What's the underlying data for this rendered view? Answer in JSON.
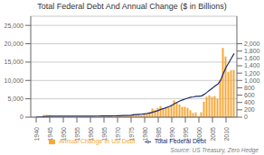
{
  "chart_data": {
    "type": "bar",
    "title": "Total Federal Debt And Annual Change ($ in Billions)",
    "x": [
      1940,
      1941,
      1942,
      1943,
      1944,
      1945,
      1946,
      1947,
      1948,
      1949,
      1950,
      1951,
      1952,
      1953,
      1954,
      1955,
      1956,
      1957,
      1958,
      1959,
      1960,
      1961,
      1962,
      1963,
      1964,
      1965,
      1966,
      1967,
      1968,
      1969,
      1970,
      1971,
      1972,
      1973,
      1974,
      1975,
      1976,
      1977,
      1978,
      1979,
      1980,
      1981,
      1982,
      1983,
      1984,
      1985,
      1986,
      1987,
      1988,
      1989,
      1990,
      1991,
      1992,
      1993,
      1994,
      1995,
      1996,
      1997,
      1998,
      1999,
      2000,
      2001,
      2002,
      2003,
      2004,
      2005,
      2006,
      2007,
      2008,
      2009,
      2010,
      2011,
      2012,
      2013
    ],
    "series": [
      {
        "name": "Annual Change In US Debt",
        "type": "bar",
        "color": "#F4A83A",
        "axis": "y2",
        "values": [
          6,
          6,
          15,
          64,
          65,
          58,
          10,
          0,
          0,
          0,
          5,
          0,
          4,
          7,
          5,
          3,
          0,
          0,
          7,
          8,
          3,
          2,
          11,
          7,
          6,
          7,
          6,
          12,
          28,
          0,
          14,
          27,
          29,
          29,
          18,
          58,
          87,
          77,
          71,
          52,
          80,
          85,
          143,
          234,
          193,
          253,
          303,
          226,
          255,
          267,
          339,
          458,
          400,
          346,
          282,
          281,
          251,
          188,
          113,
          130,
          18,
          134,
          420,
          555,
          596,
          554,
          574,
          501,
          1017,
          1885,
          1652,
          1228,
          1276,
          1286
        ]
      },
      {
        "name": "Total Federal Debt",
        "type": "line",
        "color": "#1C2B6E",
        "values": [
          51,
          57,
          72,
          136,
          201,
          259,
          269,
          258,
          252,
          252,
          257,
          255,
          259,
          266,
          271,
          274,
          272,
          272,
          279,
          287,
          290,
          292,
          303,
          310,
          316,
          323,
          329,
          341,
          369,
          367,
          381,
          408,
          437,
          466,
          484,
          542,
          629,
          706,
          777,
          829,
          909,
          994,
          1137,
          1371,
          1564,
          1817,
          2120,
          2346,
          2601,
          2868,
          3207,
          3665,
          4065,
          4411,
          4693,
          4974,
          5225,
          5413,
          5526,
          5656,
          5674,
          5808,
          6228,
          6783,
          7379,
          7933,
          8507,
          9008,
          10025,
          11910,
          13562,
          14790,
          16066,
          17352
        ]
      }
    ],
    "xlim": [
      1938,
      2014
    ],
    "xticks": [
      1940,
      1945,
      1950,
      1955,
      1960,
      1965,
      1970,
      1975,
      1980,
      1985,
      1990,
      1995,
      2000,
      2005,
      2010
    ],
    "ylim": [
      0,
      27500
    ],
    "yticks": [
      0,
      {
        "value": 5000,
        "label": "5,000"
      },
      {
        "value": 10000,
        "label": "10,000"
      },
      {
        "value": 15000,
        "label": "15,000"
      },
      {
        "value": 20000,
        "label": "20,000"
      },
      {
        "value": 25000,
        "label": "25,000"
      }
    ],
    "y2lim": [
      0,
      2750
    ],
    "y2ticks": [
      0,
      200,
      400,
      600,
      800,
      {
        "value": 1000,
        "label": "1,000"
      },
      {
        "value": 1200,
        "label": "1,200"
      },
      {
        "value": 1400,
        "label": "1,400"
      },
      {
        "value": 1600,
        "label": "1,600"
      },
      {
        "value": 1800,
        "label": "1,800"
      },
      {
        "value": 2000,
        "label": "2,000"
      }
    ],
    "grid": true,
    "legend": "bottom",
    "annotations": [
      "Source: US Treasury, Zero Hedge"
    ]
  }
}
